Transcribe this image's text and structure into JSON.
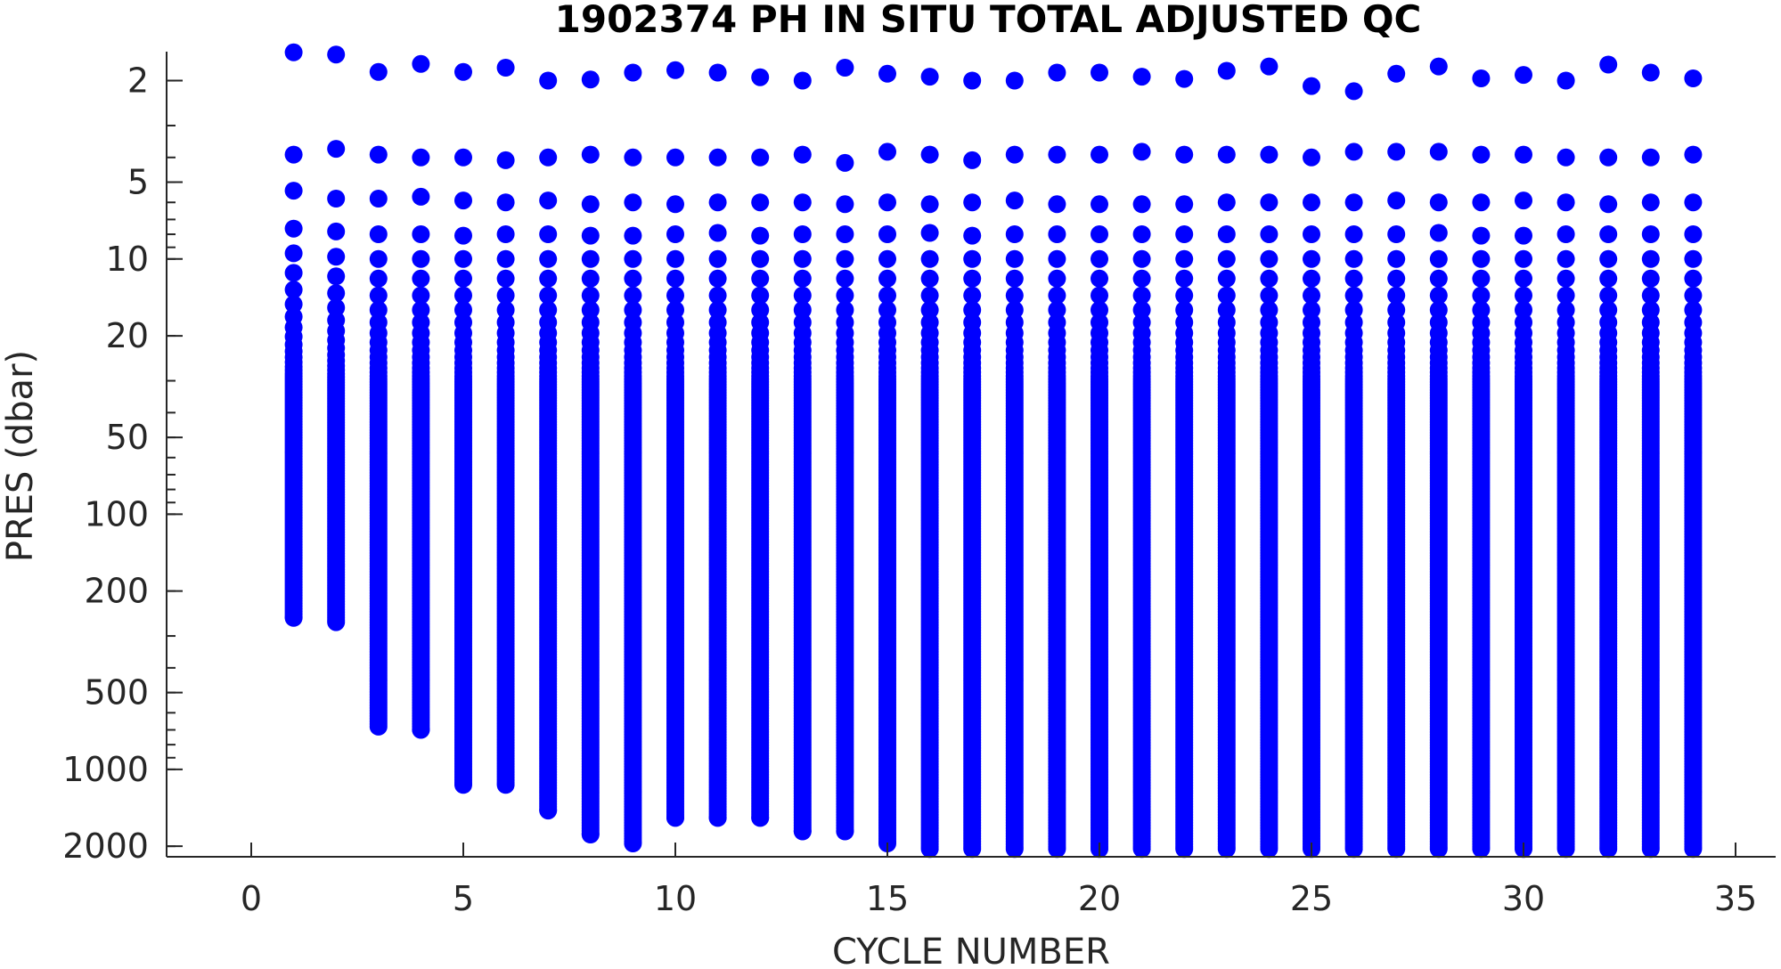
{
  "chart_data": {
    "type": "scatter",
    "title": "1902374  PH IN SITU TOTAL ADJUSTED QC",
    "xlabel": "CYCLE NUMBER",
    "ylabel": "PRES (dbar)",
    "xlim": [
      -2,
      36
    ],
    "ylim": [
      1.54,
      2200
    ],
    "y_scale": "log",
    "y_reversed": true,
    "x_ticks": [
      0,
      5,
      10,
      15,
      20,
      25,
      30,
      35
    ],
    "y_ticks": [
      2,
      5,
      10,
      20,
      50,
      100,
      200,
      500,
      1000,
      2000
    ],
    "grid": false,
    "marker_color": "#0000ff",
    "series": [
      {
        "points_by_cycle": [
          {
            "cycle": 1,
            "pres_top": [
              1.55,
              3.9,
              5.4,
              7.6
            ],
            "continuous_from": 9.5,
            "max_pres": 255
          },
          {
            "cycle": 2,
            "pres_top": [
              1.58,
              3.7,
              5.8,
              7.8
            ],
            "continuous_from": 9.8,
            "max_pres": 265
          },
          {
            "cycle": 3,
            "pres_top": [
              1.85,
              3.9,
              5.8,
              8.0
            ],
            "continuous_from": 10,
            "max_pres": 680
          },
          {
            "cycle": 4,
            "pres_top": [
              1.72,
              4.0,
              5.7,
              8.0
            ],
            "continuous_from": 10,
            "max_pres": 700
          },
          {
            "cycle": 5,
            "pres_top": [
              1.85,
              4.0,
              5.9,
              8.1
            ],
            "continuous_from": 10,
            "max_pres": 1150
          },
          {
            "cycle": 6,
            "pres_top": [
              1.78,
              4.1,
              6.0,
              8.0
            ],
            "continuous_from": 10,
            "max_pres": 1150
          },
          {
            "cycle": 7,
            "pres_top": [
              2.0,
              4.0,
              5.9,
              8.0
            ],
            "continuous_from": 10,
            "max_pres": 1450
          },
          {
            "cycle": 8,
            "pres_top": [
              1.98,
              3.9,
              6.1,
              8.1
            ],
            "continuous_from": 10,
            "max_pres": 1800
          },
          {
            "cycle": 9,
            "pres_top": [
              1.86,
              4.0,
              6.0,
              8.1
            ],
            "continuous_from": 10,
            "max_pres": 1950
          },
          {
            "cycle": 10,
            "pres_top": [
              1.82,
              4.0,
              6.1,
              8.0
            ],
            "continuous_from": 10,
            "max_pres": 1550
          },
          {
            "cycle": 11,
            "pres_top": [
              1.86,
              4.0,
              6.0,
              7.9
            ],
            "continuous_from": 10,
            "max_pres": 1550
          },
          {
            "cycle": 12,
            "pres_top": [
              1.94,
              4.0,
              6.0,
              8.1
            ],
            "continuous_from": 10,
            "max_pres": 1550
          },
          {
            "cycle": 13,
            "pres_top": [
              2.0,
              3.9,
              6.0,
              8.0
            ],
            "continuous_from": 10,
            "max_pres": 1750
          },
          {
            "cycle": 14,
            "pres_top": [
              1.78,
              4.2,
              6.1,
              8.0
            ],
            "continuous_from": 10,
            "max_pres": 1750
          },
          {
            "cycle": 15,
            "pres_top": [
              1.88,
              3.8,
              6.0,
              8.0
            ],
            "continuous_from": 10,
            "max_pres": 1950
          },
          {
            "cycle": 16,
            "pres_top": [
              1.93,
              3.9,
              6.1,
              7.9
            ],
            "continuous_from": 10,
            "max_pres": 2050
          },
          {
            "cycle": 17,
            "pres_top": [
              2.0,
              4.1,
              6.0,
              8.1
            ],
            "continuous_from": 10,
            "max_pres": 2050
          },
          {
            "cycle": 18,
            "pres_top": [
              2.0,
              3.9,
              5.9,
              8.0
            ],
            "continuous_from": 10,
            "max_pres": 2050
          },
          {
            "cycle": 19,
            "pres_top": [
              1.86,
              3.9,
              6.1,
              8.0
            ],
            "continuous_from": 10,
            "max_pres": 2050
          },
          {
            "cycle": 20,
            "pres_top": [
              1.86,
              3.9,
              6.1,
              8.0
            ],
            "continuous_from": 10,
            "max_pres": 2050
          },
          {
            "cycle": 21,
            "pres_top": [
              1.93,
              3.8,
              6.1,
              8.0
            ],
            "continuous_from": 10,
            "max_pres": 2050
          },
          {
            "cycle": 22,
            "pres_top": [
              1.97,
              3.9,
              6.1,
              8.0
            ],
            "continuous_from": 10,
            "max_pres": 2050
          },
          {
            "cycle": 23,
            "pres_top": [
              1.83,
              3.9,
              6.0,
              8.0
            ],
            "continuous_from": 10,
            "max_pres": 2050
          },
          {
            "cycle": 24,
            "pres_top": [
              1.76,
              3.9,
              6.0,
              8.0
            ],
            "continuous_from": 10,
            "max_pres": 2050
          },
          {
            "cycle": 25,
            "pres_top": [
              2.1,
              4.0,
              6.0,
              8.0
            ],
            "continuous_from": 10,
            "max_pres": 2050
          },
          {
            "cycle": 26,
            "pres_top": [
              2.2,
              3.8,
              6.0,
              8.0
            ],
            "continuous_from": 10,
            "max_pres": 2050
          },
          {
            "cycle": 27,
            "pres_top": [
              1.88,
              3.8,
              5.9,
              8.0
            ],
            "continuous_from": 10,
            "max_pres": 2050
          },
          {
            "cycle": 28,
            "pres_top": [
              1.76,
              3.8,
              6.0,
              7.9
            ],
            "continuous_from": 10,
            "max_pres": 2050
          },
          {
            "cycle": 29,
            "pres_top": [
              1.96,
              3.9,
              6.0,
              8.1
            ],
            "continuous_from": 10,
            "max_pres": 2050
          },
          {
            "cycle": 30,
            "pres_top": [
              1.9,
              3.9,
              5.9,
              8.1
            ],
            "continuous_from": 10,
            "max_pres": 2050
          },
          {
            "cycle": 31,
            "pres_top": [
              2.0,
              4.0,
              6.0,
              8.0
            ],
            "continuous_from": 10,
            "max_pres": 2050
          },
          {
            "cycle": 32,
            "pres_top": [
              1.73,
              4.0,
              6.1,
              8.0
            ],
            "continuous_from": 10,
            "max_pres": 2050
          },
          {
            "cycle": 33,
            "pres_top": [
              1.86,
              4.0,
              6.0,
              8.0
            ],
            "continuous_from": 10,
            "max_pres": 2050
          },
          {
            "cycle": 34,
            "pres_top": [
              1.96,
              3.9,
              6.0,
              8.0
            ],
            "continuous_from": 10,
            "max_pres": 2050
          }
        ]
      }
    ]
  }
}
